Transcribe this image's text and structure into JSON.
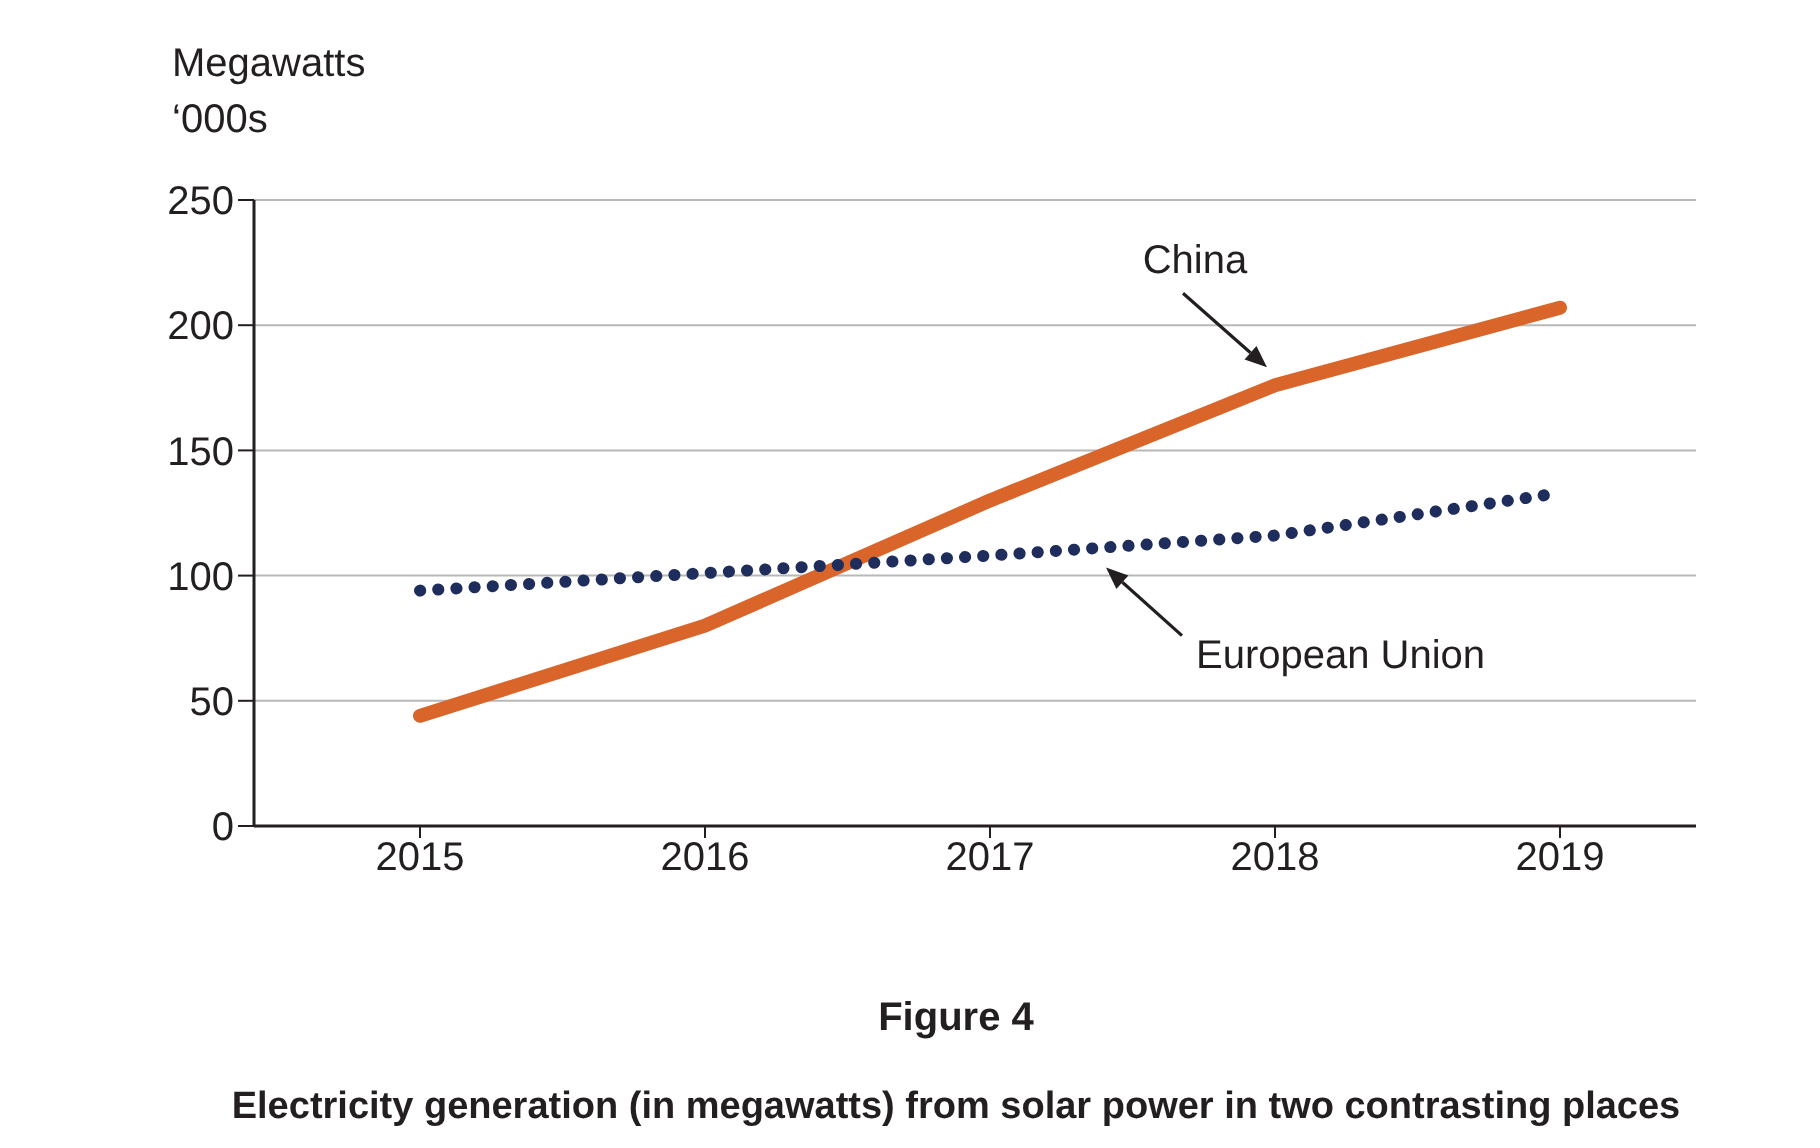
{
  "chart_data": {
    "type": "line",
    "title": "Figure 4",
    "subtitle": "Electricity generation (in megawatts) from solar power in two contrasting places",
    "ylabel": "Megawatts\n‘000s",
    "categories": [
      "2015",
      "2016",
      "2017",
      "2018",
      "2019"
    ],
    "series": [
      {
        "name": "China",
        "color": "#d9652b",
        "values": [
          44,
          80,
          130,
          176,
          207
        ],
        "line_style": "solid"
      },
      {
        "name": "European Union",
        "color": "#1f2d5c",
        "values": [
          94,
          101,
          108,
          116,
          133
        ],
        "line_style": "dotted"
      }
    ],
    "ylim": [
      0,
      250
    ],
    "yticks": [
      0,
      50,
      100,
      150,
      200,
      250
    ],
    "grid": "y",
    "legend": false,
    "marker": "none"
  }
}
